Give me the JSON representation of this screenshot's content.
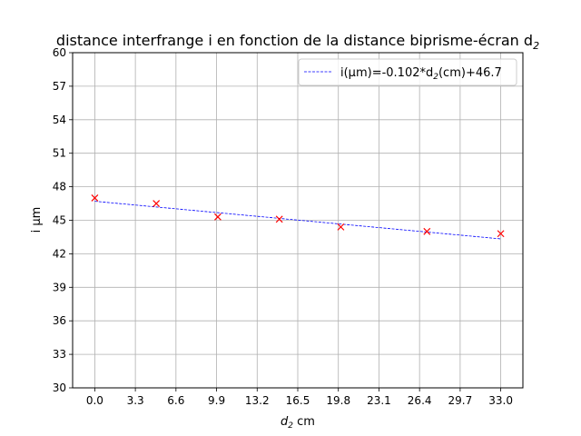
{
  "chart_data": {
    "type": "scatter",
    "title_main": "distance interfrange i en fonction de la distance biprisme-écran d",
    "title_sub": "2",
    "xlabel_main": "d",
    "xlabel_sub": "2",
    "xlabel_rest": " cm",
    "ylabel": "i µm",
    "xlim": [
      -1.8,
      34.8
    ],
    "ylim": [
      30,
      60
    ],
    "xticks": [
      "0.0",
      "3.3",
      "6.6",
      "9.9",
      "13.2",
      "16.5",
      "19.8",
      "23.1",
      "26.4",
      "29.7",
      "33.0"
    ],
    "xtick_values": [
      0,
      3.3,
      6.6,
      9.9,
      13.2,
      16.5,
      19.8,
      23.1,
      26.4,
      29.7,
      33.0
    ],
    "yticks": [
      "30",
      "33",
      "36",
      "39",
      "42",
      "45",
      "48",
      "51",
      "54",
      "57",
      "60"
    ],
    "ytick_values": [
      30,
      33,
      36,
      39,
      42,
      45,
      48,
      51,
      54,
      57,
      60
    ],
    "grid": true,
    "legend_position": "top-right",
    "series": [
      {
        "kind": "points",
        "color": "#ff0000",
        "marker": "x",
        "x": [
          0,
          5,
          10,
          15,
          20,
          27,
          33
        ],
        "y": [
          47.0,
          46.5,
          45.3,
          45.1,
          44.4,
          44.0,
          43.8
        ]
      },
      {
        "kind": "fit",
        "color": "#0000ff",
        "linestyle": "dashed",
        "legend_main": "i(µm)=-0.102*d",
        "legend_sub": "2",
        "legend_rest": "(cm)+46.7",
        "slope": -0.102,
        "intercept": 46.7,
        "x_range": [
          0,
          33
        ]
      }
    ]
  }
}
